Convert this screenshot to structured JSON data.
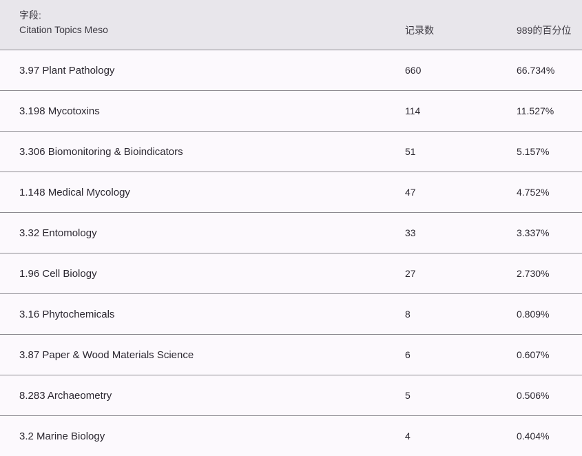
{
  "header": {
    "field_label": "字段:",
    "field_name": "Citation Topics Meso",
    "count_label": "记录数",
    "percent_label": "989的百分位"
  },
  "rows": [
    {
      "topic": "3.97 Plant Pathology",
      "count": "660",
      "percent": "66.734%"
    },
    {
      "topic": "3.198 Mycotoxins",
      "count": "114",
      "percent": "11.527%"
    },
    {
      "topic": "3.306 Biomonitoring & Bioindicators",
      "count": "51",
      "percent": "5.157%"
    },
    {
      "topic": "1.148 Medical Mycology",
      "count": "47",
      "percent": "4.752%"
    },
    {
      "topic": "3.32 Entomology",
      "count": "33",
      "percent": "3.337%"
    },
    {
      "topic": "1.96 Cell Biology",
      "count": "27",
      "percent": "2.730%"
    },
    {
      "topic": "3.16 Phytochemicals",
      "count": "8",
      "percent": "0.809%"
    },
    {
      "topic": "3.87 Paper & Wood Materials Science",
      "count": "6",
      "percent": "0.607%"
    },
    {
      "topic": "8.283 Archaeometry",
      "count": "5",
      "percent": "0.506%"
    },
    {
      "topic": "3.2 Marine Biology",
      "count": "4",
      "percent": "0.404%"
    }
  ]
}
